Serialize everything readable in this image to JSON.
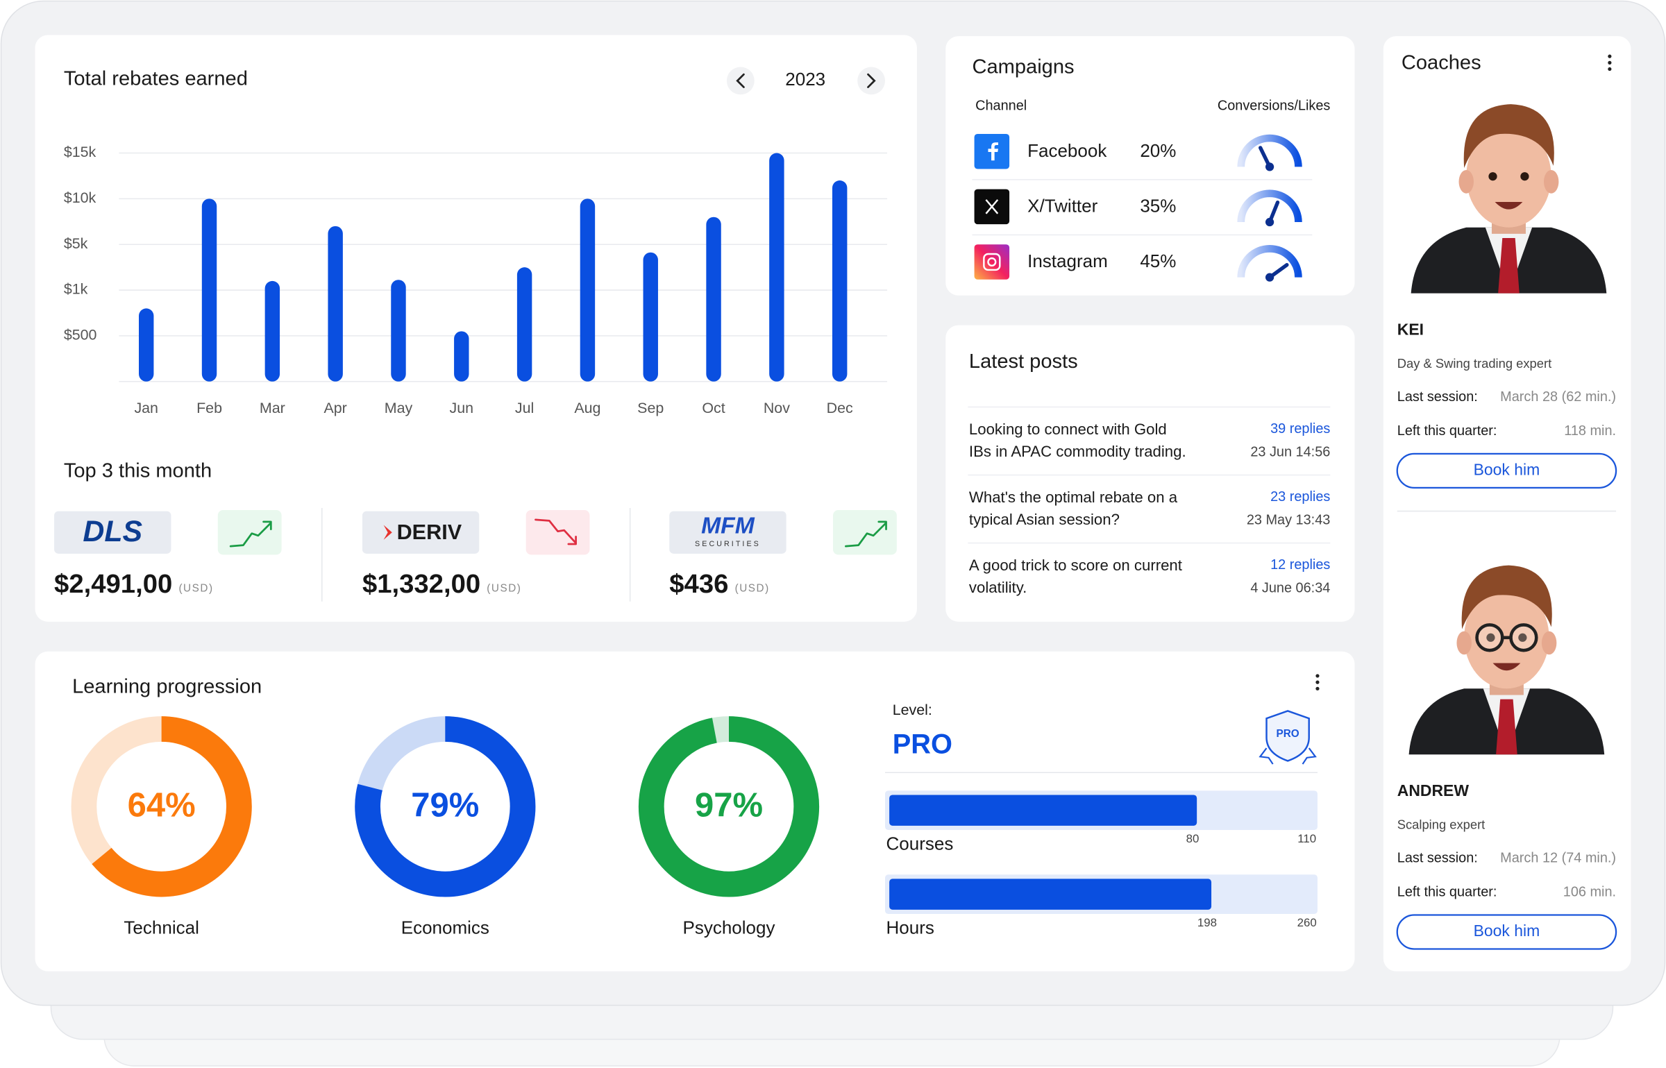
{
  "rebates": {
    "title": "Total rebates earned",
    "year": "2023",
    "type": "bar",
    "categories": [
      "Jan",
      "Feb",
      "Mar",
      "Apr",
      "May",
      "Jun",
      "Jul",
      "Aug",
      "Sep",
      "Oct",
      "Nov",
      "Dec"
    ],
    "values": [
      800,
      10000,
      1800,
      7000,
      1900,
      550,
      3000,
      10000,
      4300,
      8000,
      15000,
      12000
    ],
    "color": "#0a4fe0",
    "ylim": [
      0,
      15000
    ],
    "yticks": [
      {
        "value": 500,
        "label": "$500"
      },
      {
        "value": 1000,
        "label": "$1k"
      },
      {
        "value": 5000,
        "label": "$5k"
      },
      {
        "value": 10000,
        "label": "$10k"
      },
      {
        "value": 15000,
        "label": "$15k"
      }
    ],
    "grid": true
  },
  "top3": {
    "title": "Top 3 this month",
    "items": [
      {
        "logo": "DLS",
        "amount": "$2,491,00",
        "currency": "(USD)",
        "trend": "up"
      },
      {
        "logo": "DERIV",
        "amount": "$1,332,00",
        "currency": "(USD)",
        "trend": "down"
      },
      {
        "logo": "MFM",
        "logo_sub": "SECURITIES",
        "amount": "$436",
        "currency": "(USD)",
        "trend": "up"
      }
    ]
  },
  "campaigns": {
    "title": "Campaigns",
    "channel_header": "Channel",
    "metric_header": "Conversions/Likes",
    "rows": [
      {
        "channel": "Facebook",
        "value": 20,
        "value_label": "20%"
      },
      {
        "channel": "X/Twitter",
        "value": 35,
        "value_label": "35%"
      },
      {
        "channel": "Instagram",
        "value": 45,
        "value_label": "45%"
      }
    ]
  },
  "posts": {
    "title": "Latest posts",
    "items": [
      {
        "lines": [
          "Looking to connect with Gold",
          "IBs in APAC commodity trading."
        ],
        "replies": "39 replies",
        "date": "23 Jun 14:56"
      },
      {
        "lines": [
          "What's the optimal rebate on a",
          "typical Asian session?"
        ],
        "replies": "23 replies",
        "date": "23 May 13:43"
      },
      {
        "lines": [
          "A good trick to score on current",
          "volatility."
        ],
        "replies": "12 replies",
        "date": "4 June 06:34"
      }
    ]
  },
  "learning": {
    "title": "Learning progression",
    "donuts": [
      {
        "name": "Technical",
        "value": 64,
        "value_label": "64%",
        "color": "#fb7a0c",
        "track": "#fde3cd"
      },
      {
        "name": "Economics",
        "value": 79,
        "value_label": "79%",
        "color": "#0a4fe0",
        "track": "#cbdaf6"
      },
      {
        "name": "Psychology",
        "value": 97,
        "value_label": "97%",
        "color": "#17a347",
        "track": "#d3ecdc"
      }
    ],
    "level_label": "Level:",
    "level": "PRO",
    "badge": "PRO",
    "bar_color": "#0a4fe0",
    "bars": [
      {
        "name": "Courses",
        "value": 80,
        "max": 110
      },
      {
        "name": "Hours",
        "value": 198,
        "max": 260
      }
    ]
  },
  "coaches": {
    "title": "Coaches",
    "items": [
      {
        "name": "KEI",
        "role": "Day & Swing trading expert",
        "last_label": "Last session:",
        "last": "March 28 (62 min.)",
        "left_label": "Left this quarter:",
        "left": "118 min.",
        "button": "Book him"
      },
      {
        "name": "ANDREW",
        "role": "Scalping expert",
        "last_label": "Last session:",
        "last": "March 12 (74 min.)",
        "left_label": "Left this quarter:",
        "left": "106 min.",
        "button": "Book him"
      }
    ]
  }
}
